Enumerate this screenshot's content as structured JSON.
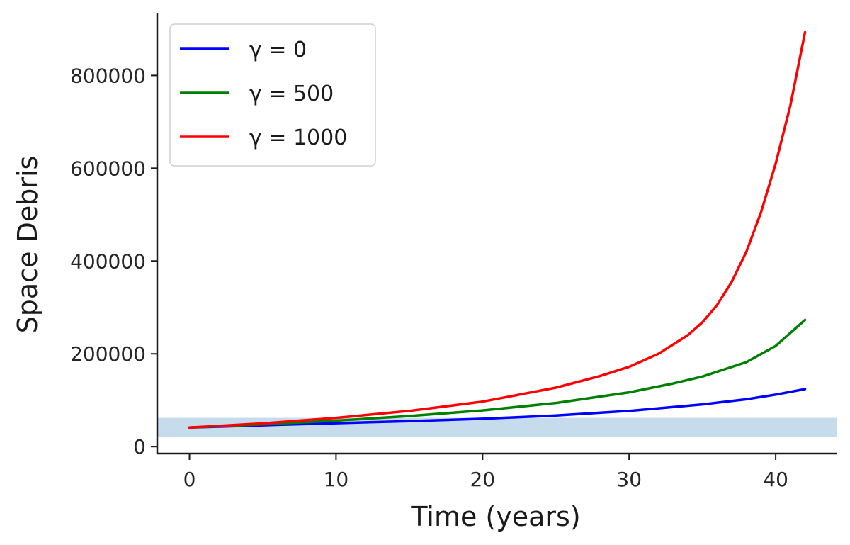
{
  "chart_data": {
    "type": "line",
    "xlabel": "Time (years)",
    "ylabel": "Space Debris",
    "xlim": [
      -2.2,
      44.2
    ],
    "ylim": [
      -15000,
      935000
    ],
    "xticks": [
      0,
      10,
      20,
      30,
      40
    ],
    "yticks": [
      0,
      200000,
      400000,
      600000,
      800000
    ],
    "grid": false,
    "legend": {
      "position": "top-left"
    },
    "band": {
      "y0": 20000,
      "y1": 62000,
      "color": "#c6dbec"
    },
    "series": [
      {
        "name": "γ = 0",
        "color": "#0000ff",
        "x": [
          0,
          5,
          10,
          15,
          20,
          25,
          30,
          35,
          38,
          40,
          42
        ],
        "y": [
          41000,
          46000,
          50500,
          55000,
          60000,
          67000,
          77000,
          91000,
          102000,
          112000,
          124000
        ]
      },
      {
        "name": "γ = 500",
        "color": "#008000",
        "x": [
          0,
          5,
          10,
          15,
          20,
          25,
          30,
          33,
          35,
          38,
          40,
          42
        ],
        "y": [
          41000,
          48000,
          56000,
          66000,
          78000,
          94000,
          117000,
          136000,
          151000,
          182000,
          217000,
          273000
        ]
      },
      {
        "name": "γ = 1000",
        "color": "#ff0000",
        "x": [
          0,
          5,
          10,
          15,
          20,
          25,
          28,
          30,
          32,
          34,
          35,
          36,
          37,
          38,
          39,
          40,
          41,
          42
        ],
        "y": [
          41000,
          50000,
          62000,
          77000,
          97000,
          127000,
          152000,
          172000,
          200000,
          240000,
          268000,
          305000,
          355000,
          420000,
          505000,
          610000,
          735000,
          893000
        ]
      }
    ]
  }
}
